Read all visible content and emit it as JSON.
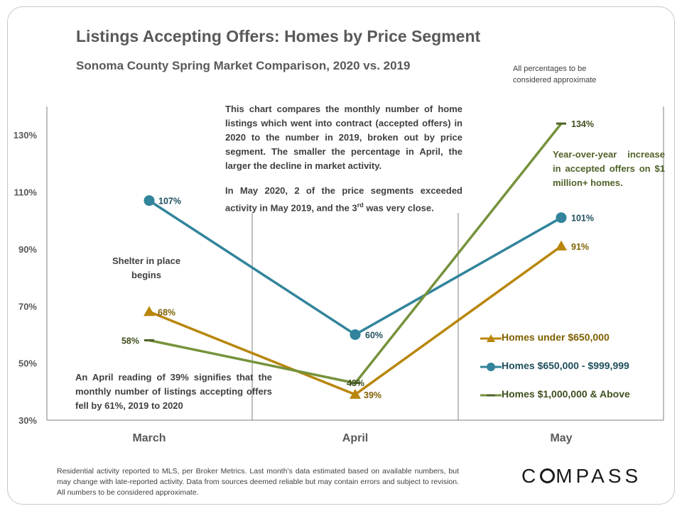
{
  "title": "Listings Accepting Offers: Homes by Price Segment",
  "subtitle": "Sonoma County Spring Market Comparison,  2020 vs. 2019",
  "approx_note": "All percentages to be considered approximate",
  "annotation_main": "This chart compares the monthly number of home listings which went into contract (accepted offers) in 2020 to the number in 2019, broken out by price segment. The smaller the percentage in April, the larger the decline in market activity.",
  "annotation_may_prefix": "In May 2020, 2 of the price segments exceeded activity in May 2019, and the 3",
  "annotation_may_sup": "rd",
  "annotation_may_suffix": " was very close.",
  "annotation_shelter": "Shelter in place begins",
  "annotation_april": "An April reading of 39% signifies that the monthly number of listings accepting offers fell by 61%, 2019 to 2020",
  "annotation_green": "Year-over-year increase in accepted offers on $1 million+ homes.",
  "footnote": "Residential activity reported to MLS, per Broker Metrics. Last month’s data estimated based on available numbers, but may change with late-reported activity. Data from sources deemed reliable but may contain errors and subject to revision. All numbers to be considered approximate.",
  "logo": "COMPASS",
  "colors": {
    "gold": "#b8860b",
    "teal": "#31849b",
    "green": "#76923c",
    "gold_text": "#7f6000",
    "teal_text": "#1f4e5c",
    "green_text": "#3d4f1e"
  },
  "chart_data": {
    "type": "line",
    "categories": [
      "March",
      "April",
      "May"
    ],
    "ylim": [
      30,
      140
    ],
    "yticks": [
      "30%",
      "50%",
      "70%",
      "90%",
      "110%",
      "130%"
    ],
    "ytick_values": [
      30,
      50,
      70,
      90,
      110,
      130
    ],
    "series": [
      {
        "name": "Homes under $650,000",
        "values": [
          68,
          39,
          91
        ],
        "labels": [
          "68%",
          "39%",
          "91%"
        ],
        "marker": "triangle",
        "color": "#b8860b"
      },
      {
        "name": "Homes $650,000 - $999,999",
        "values": [
          107,
          60,
          101
        ],
        "labels": [
          "107%",
          "60%",
          "101%"
        ],
        "marker": "circle",
        "color": "#31849b"
      },
      {
        "name": "Homes $1,000,000 & Above",
        "values": [
          58,
          43,
          134
        ],
        "labels": [
          "58%",
          "43%",
          "134%"
        ],
        "marker": "dash",
        "color": "#76923c"
      }
    ]
  }
}
